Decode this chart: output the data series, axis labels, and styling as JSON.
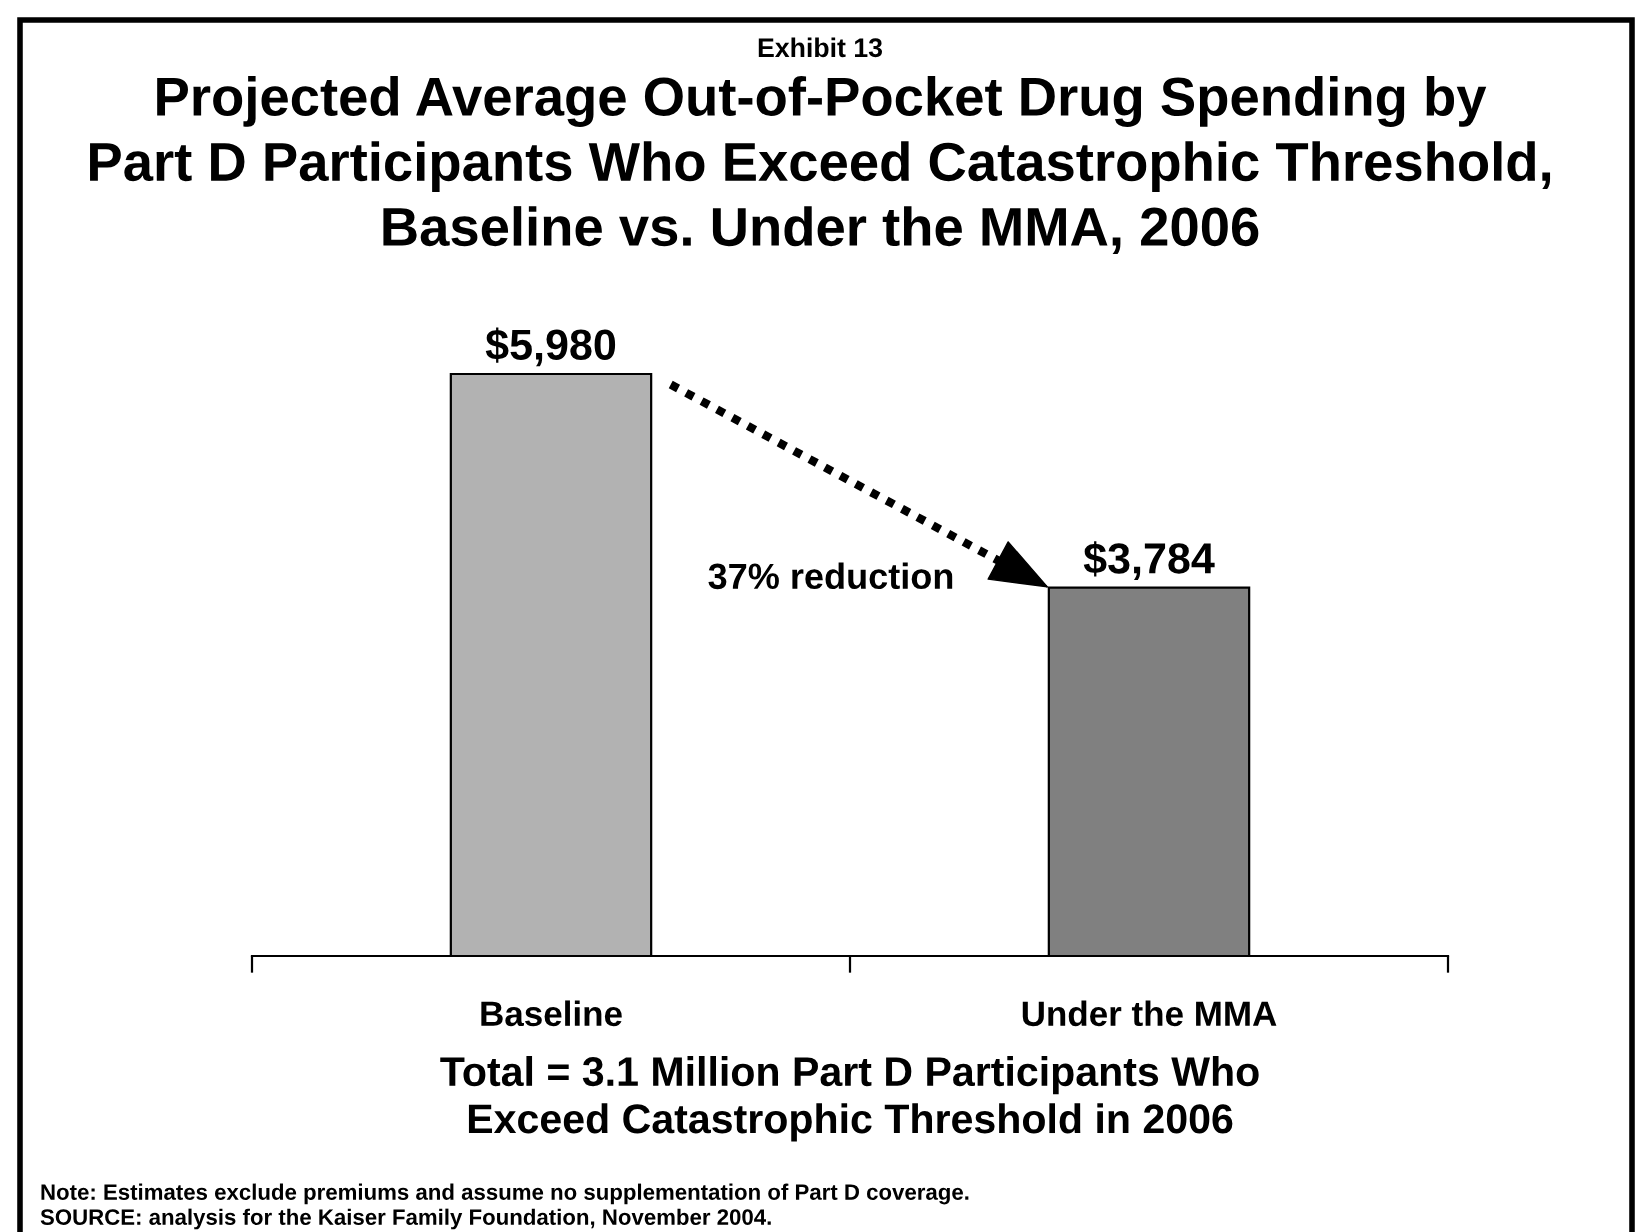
{
  "chart_data": {
    "type": "bar",
    "title": "Projected Average Out-of-Pocket Drug Spending by\nPart D Participants Who Exceed Catastrophic Threshold,\nBaseline vs. Under the MMA, 2006",
    "xlabel": "Total = 3.1 Million Part D Participants Who\nExceed Catastrophic Threshold in 2006",
    "categories": [
      "Baseline",
      "Under the MMA"
    ],
    "values": [
      5980,
      3784
    ],
    "colors": [
      "#b2b2b2",
      "#808080"
    ],
    "value_labels": [
      "$5,980",
      "$3,784"
    ],
    "annotations": [
      "Exhibit 13",
      "37% reduction",
      "Note: Estimates exclude premiums and assume no supplementation of Part D coverage.",
      "SOURCE: analysis for the Kaiser Family Foundation, November 2004."
    ]
  }
}
